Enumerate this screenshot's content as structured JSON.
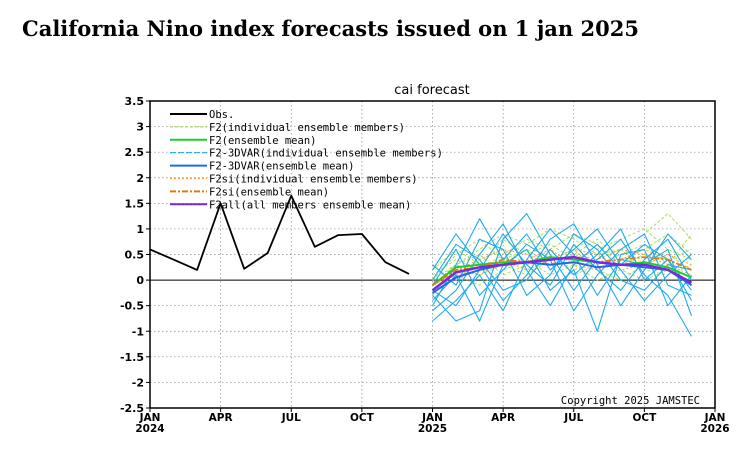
{
  "page": {
    "title": "California Nino index forecasts issued on 1 jan 2025"
  },
  "chart_data": {
    "type": "line",
    "title": "cai forecast",
    "xlabel": "",
    "ylabel": "",
    "ylim": [
      -2.5,
      3.5
    ],
    "y_ticks": [
      "3.5",
      "3",
      "2.5",
      "2",
      "1.5",
      "1",
      "0.5",
      "0",
      "-0.5",
      "-1",
      "-1.5",
      "-2",
      "-2.5"
    ],
    "x_ticks": [
      {
        "month": 0,
        "label": "JAN",
        "year": "2024"
      },
      {
        "month": 3,
        "label": "APR",
        "year": ""
      },
      {
        "month": 6,
        "label": "JUL",
        "year": ""
      },
      {
        "month": 9,
        "label": "OCT",
        "year": ""
      },
      {
        "month": 12,
        "label": "JAN",
        "year": "2025"
      },
      {
        "month": 15,
        "label": "APR",
        "year": ""
      },
      {
        "month": 18,
        "label": "JUL",
        "year": ""
      },
      {
        "month": 21,
        "label": "OCT",
        "year": ""
      },
      {
        "month": 24,
        "label": "JAN",
        "year": "2026"
      }
    ],
    "grid": true,
    "legend_position": "top-left",
    "copyright": "Copyright 2025 JAMSTEC",
    "colors": {
      "obs": "#000000",
      "f2_members": "#a8e05a",
      "f2_mean": "#22cc22",
      "f2_3dvar_members": "#22aaee",
      "f2_3dvar_mean": "#2266ee",
      "f2si_members": "#f5a040",
      "f2si_mean": "#e07a10",
      "f2all_mean": "#7a2ad8"
    },
    "legend": [
      {
        "key": "obs",
        "label": "Obs.",
        "dash": "none"
      },
      {
        "key": "f2_members",
        "label": "F2(individual ensemble members)",
        "dash": "3,2"
      },
      {
        "key": "f2_mean",
        "label": "F2(ensemble mean)",
        "dash": "none"
      },
      {
        "key": "f2_3dvar_members",
        "label": "F2-3DVAR(individual ensemble members)",
        "dash": "6,2"
      },
      {
        "key": "f2_3dvar_mean",
        "label": "F2-3DVAR(ensemble mean)",
        "dash": "none"
      },
      {
        "key": "f2si_members",
        "label": "F2si(individual ensemble members)",
        "dash": "2,2"
      },
      {
        "key": "f2si_mean",
        "label": "F2si(ensemble mean)",
        "dash": "6,2,2,2"
      },
      {
        "key": "f2all_mean",
        "label": "F2all(all members ensemble mean)",
        "dash": "none"
      }
    ],
    "obs": {
      "x": [
        0,
        1,
        2,
        3,
        4,
        5,
        6,
        7,
        8,
        9,
        10,
        11
      ],
      "y": [
        0.6,
        0.4,
        0.2,
        1.5,
        0.22,
        0.53,
        1.65,
        0.65,
        0.88,
        0.9,
        0.35,
        0.12
      ]
    },
    "forecast_x": [
      12,
      13,
      14,
      15,
      16,
      17,
      18,
      19,
      20,
      21,
      22,
      23
    ],
    "f2_members": [
      [
        -0.1,
        0.3,
        0.6,
        0.9,
        0.7,
        1.0,
        0.8,
        0.5,
        0.6,
        0.9,
        1.3,
        0.8
      ],
      [
        0.1,
        0.4,
        0.2,
        0.5,
        0.8,
        0.6,
        0.9,
        0.7,
        0.3,
        0.5,
        0.4,
        0.6
      ],
      [
        -0.2,
        0.0,
        0.4,
        0.6,
        0.3,
        0.5,
        0.2,
        0.4,
        0.6,
        0.2,
        0.1,
        0.3
      ],
      [
        0.0,
        0.5,
        0.8,
        0.4,
        0.6,
        0.3,
        0.5,
        0.8,
        0.4,
        0.6,
        0.9,
        0.5
      ],
      [
        -0.3,
        0.2,
        0.1,
        0.3,
        0.1,
        0.4,
        0.6,
        0.2,
        0.0,
        0.3,
        0.5,
        0.2
      ],
      [
        0.2,
        0.6,
        0.3,
        0.8,
        0.5,
        0.7,
        0.4,
        0.6,
        0.8,
        1.0,
        0.6,
        0.4
      ],
      [
        -0.1,
        0.1,
        -0.1,
        0.2,
        0.4,
        0.1,
        0.3,
        0.0,
        0.2,
        0.0,
        0.2,
        -0.1
      ],
      [
        0.0,
        0.3,
        0.5,
        0.1,
        0.3,
        0.6,
        0.1,
        0.3,
        0.5,
        0.7,
        0.3,
        0.9
      ]
    ],
    "f2_mean": [
      -0.1,
      0.25,
      0.3,
      0.35,
      0.35,
      0.45,
      0.4,
      0.35,
      0.3,
      0.35,
      0.25,
      0.05
    ],
    "f2_3dvar_members": [
      [
        -0.5,
        0.3,
        1.2,
        0.4,
        0.9,
        0.2,
        0.6,
        1.0,
        0.3,
        0.7,
        0.4,
        -0.2
      ],
      [
        -0.3,
        -0.8,
        -0.6,
        0.8,
        1.3,
        0.5,
        -0.2,
        0.4,
        0.8,
        0.1,
        -0.3,
        -1.1
      ],
      [
        0.2,
        0.9,
        0.3,
        -0.4,
        0.1,
        0.8,
        1.1,
        0.3,
        -0.5,
        0.2,
        0.9,
        0.4
      ],
      [
        -0.6,
        -0.2,
        0.5,
        1.1,
        0.2,
        -0.5,
        0.3,
        0.7,
        0.2,
        -0.4,
        0.1,
        0.5
      ],
      [
        -0.1,
        0.6,
        -0.3,
        0.2,
        0.7,
        0.4,
        -0.6,
        0.1,
        0.6,
        0.9,
        -0.1,
        -0.3
      ],
      [
        -0.8,
        -0.4,
        0.1,
        -0.6,
        0.4,
        1.0,
        0.5,
        -0.3,
        0.4,
        0.3,
        0.6,
        -0.7
      ],
      [
        0.3,
        -0.1,
        0.8,
        0.6,
        -0.3,
        0.1,
        0.9,
        0.6,
        0.0,
        -0.2,
        0.3,
        0.2
      ],
      [
        -0.4,
        0.1,
        -0.8,
        0.3,
        0.6,
        -0.2,
        0.2,
        -1.0,
        0.5,
        0.6,
        -0.5,
        0.1
      ],
      [
        0.0,
        0.7,
        0.4,
        -0.2,
        0.0,
        0.6,
        0.1,
        0.5,
        1.0,
        0.0,
        0.4,
        -0.4
      ],
      [
        -0.2,
        -0.5,
        0.2,
        0.9,
        0.3,
        -0.1,
        0.7,
        0.2,
        -0.2,
        0.4,
        0.8,
        0.0
      ]
    ],
    "f2_3dvar_mean": [
      -0.25,
      0.05,
      0.2,
      0.3,
      0.35,
      0.3,
      0.35,
      0.25,
      0.3,
      0.25,
      0.2,
      -0.1
    ],
    "f2si_members": [
      [
        -0.2,
        0.2,
        0.4,
        0.6,
        0.5,
        0.3,
        0.5,
        0.4,
        0.6,
        0.5,
        0.3,
        0.1
      ],
      [
        0.0,
        0.1,
        0.2,
        0.3,
        0.4,
        0.6,
        0.3,
        0.2,
        0.4,
        0.6,
        0.4,
        0.2
      ],
      [
        -0.1,
        0.3,
        0.1,
        0.4,
        0.2,
        0.4,
        0.6,
        0.5,
        0.2,
        0.3,
        0.5,
        0.3
      ]
    ],
    "f2si_mean": [
      -0.1,
      0.2,
      0.25,
      0.4,
      0.35,
      0.4,
      0.45,
      0.35,
      0.4,
      0.45,
      0.4,
      0.2
    ],
    "f2all_mean": [
      -0.2,
      0.15,
      0.25,
      0.3,
      0.35,
      0.4,
      0.45,
      0.35,
      0.3,
      0.3,
      0.2,
      -0.05
    ]
  }
}
